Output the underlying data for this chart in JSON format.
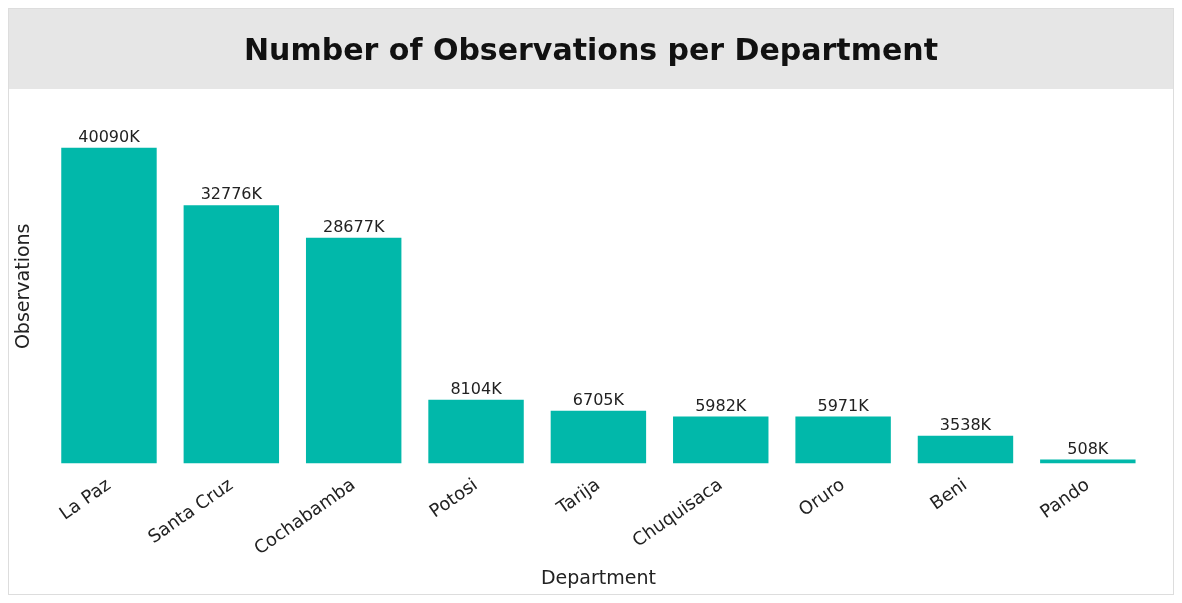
{
  "chart_data": {
    "type": "bar",
    "title": "Number of Observations per Department",
    "xlabel": "Department",
    "ylabel": "Observations",
    "categories": [
      "La Paz",
      "Santa Cruz",
      "Cochabamba",
      "Potosi",
      "Tarija",
      "Chuquisaca",
      "Oruro",
      "Beni",
      "Pando"
    ],
    "values": [
      40090,
      32776,
      28677,
      8104,
      6705,
      5982,
      5971,
      3538,
      508
    ],
    "value_labels": [
      "40090K",
      "32776K",
      "28677K",
      "8104K",
      "6705K",
      "5982K",
      "5971K",
      "3538K",
      "508K"
    ],
    "color": "#01b8aa",
    "grid": false,
    "legend": false
  }
}
